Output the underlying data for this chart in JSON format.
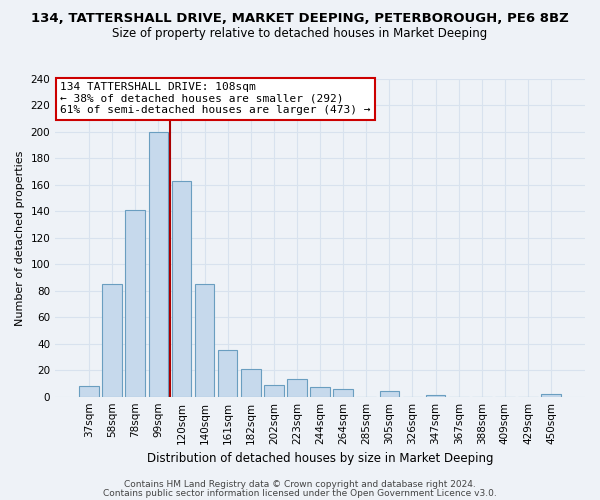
{
  "title": "134, TATTERSHALL DRIVE, MARKET DEEPING, PETERBOROUGH, PE6 8BZ",
  "subtitle": "Size of property relative to detached houses in Market Deeping",
  "xlabel": "Distribution of detached houses by size in Market Deeping",
  "ylabel": "Number of detached properties",
  "bar_labels": [
    "37sqm",
    "58sqm",
    "78sqm",
    "99sqm",
    "120sqm",
    "140sqm",
    "161sqm",
    "182sqm",
    "202sqm",
    "223sqm",
    "244sqm",
    "264sqm",
    "285sqm",
    "305sqm",
    "326sqm",
    "347sqm",
    "367sqm",
    "388sqm",
    "409sqm",
    "429sqm",
    "450sqm"
  ],
  "bar_values": [
    8,
    85,
    141,
    200,
    163,
    85,
    35,
    21,
    9,
    13,
    7,
    6,
    0,
    4,
    0,
    1,
    0,
    0,
    0,
    0,
    2
  ],
  "bar_color": "#c6d9ec",
  "bar_edge_color": "#6a9ec0",
  "ylim": [
    0,
    240
  ],
  "yticks": [
    0,
    20,
    40,
    60,
    80,
    100,
    120,
    140,
    160,
    180,
    200,
    220,
    240
  ],
  "vline_x": 3.5,
  "vline_color": "#aa0000",
  "annotation_text": "134 TATTERSHALL DRIVE: 108sqm\n← 38% of detached houses are smaller (292)\n61% of semi-detached houses are larger (473) →",
  "annotation_box_color": "#ffffff",
  "annotation_box_edge": "#cc0000",
  "footer_line1": "Contains HM Land Registry data © Crown copyright and database right 2024.",
  "footer_line2": "Contains public sector information licensed under the Open Government Licence v3.0.",
  "background_color": "#eef2f7",
  "grid_color": "#d8e2ee",
  "title_fontsize": 9.5,
  "subtitle_fontsize": 8.5,
  "ylabel_fontsize": 8,
  "xlabel_fontsize": 8.5,
  "tick_fontsize": 7.5,
  "footer_fontsize": 6.5
}
